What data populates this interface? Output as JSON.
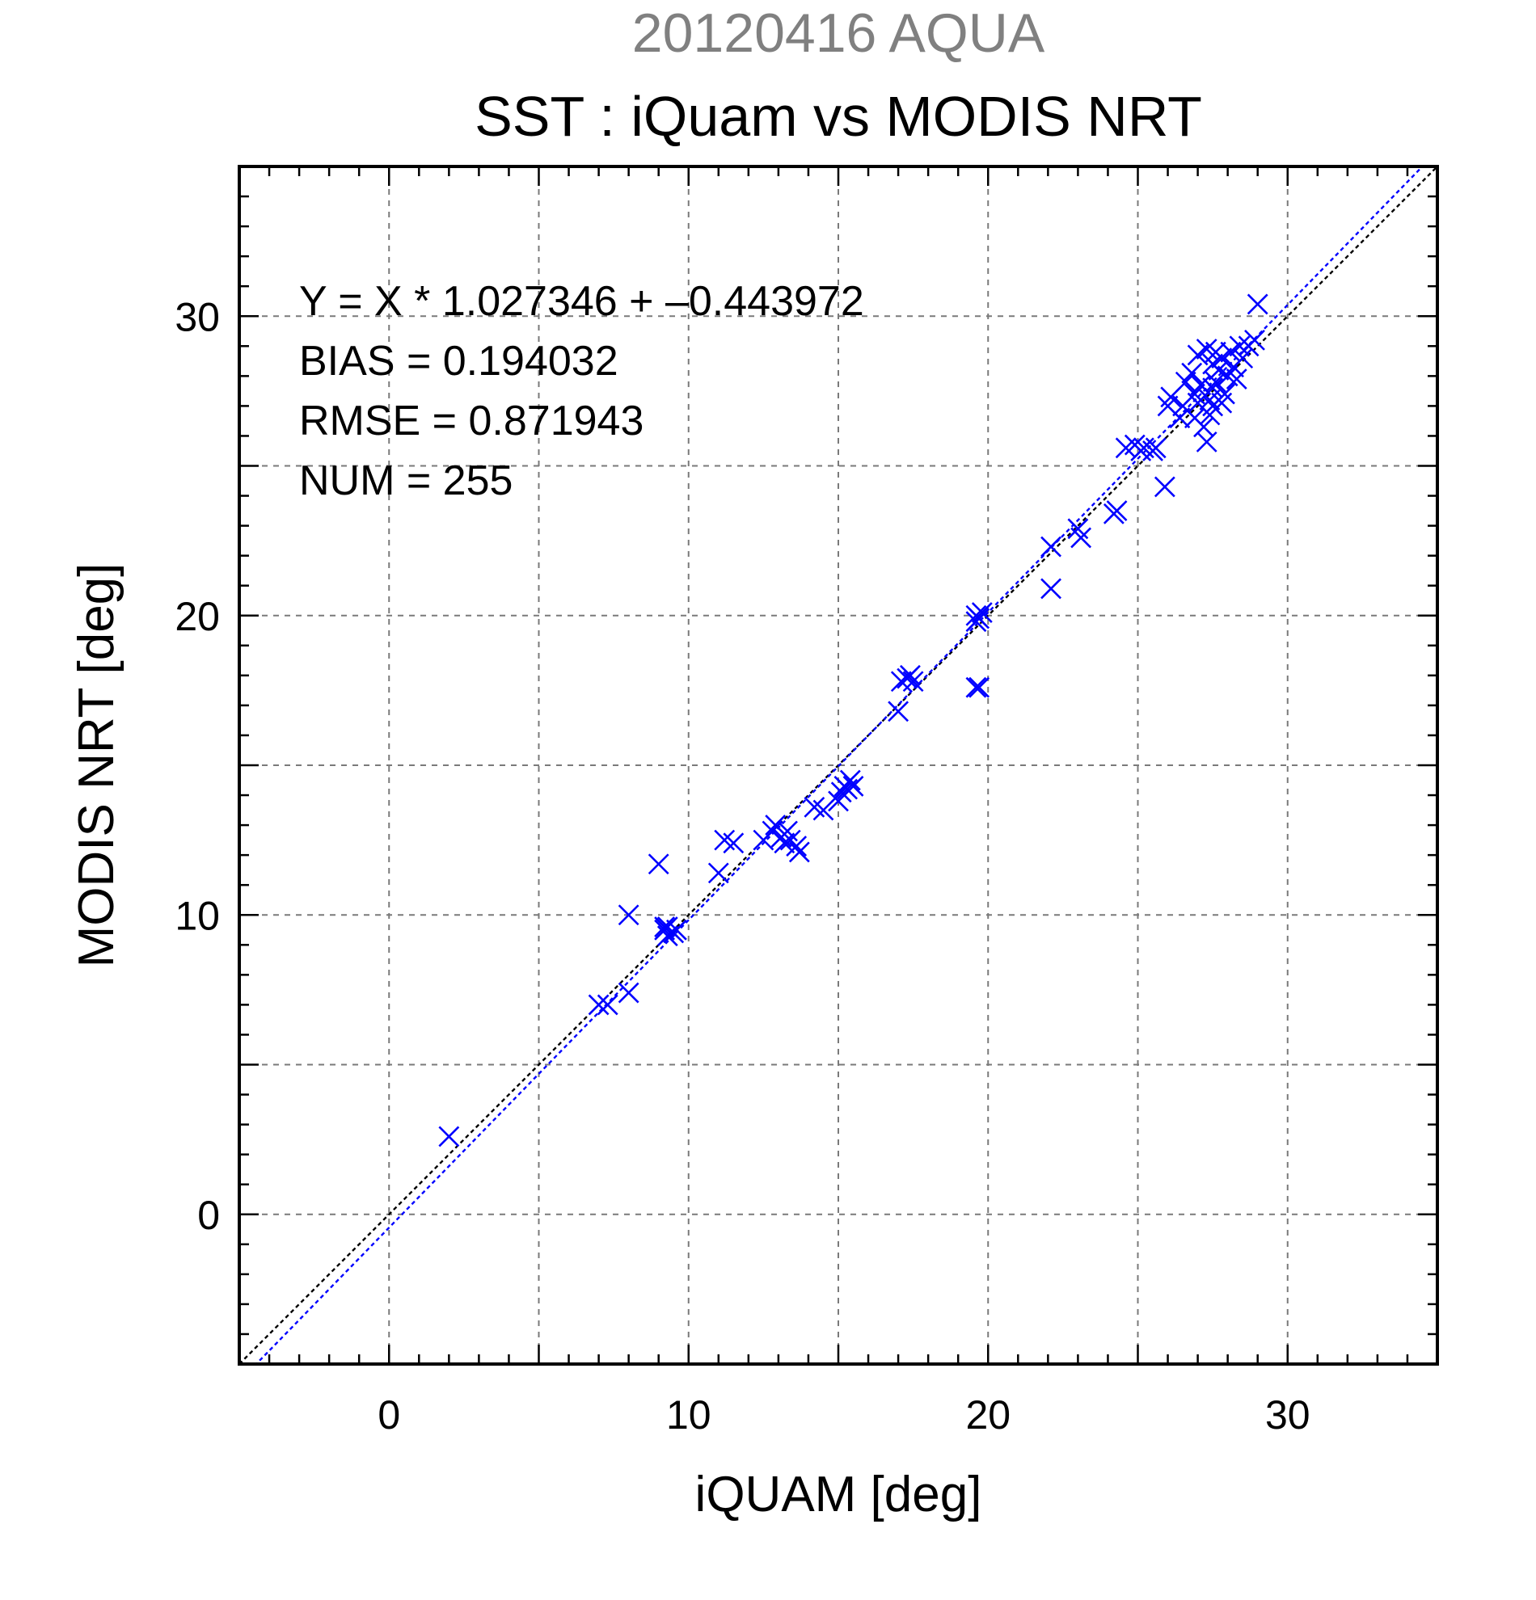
{
  "chart_data": {
    "type": "scatter",
    "title_date": "20120416 AQUA",
    "title": "SST : iQuam vs MODIS NRT",
    "xlabel": "iQUAM [deg]",
    "ylabel": "MODIS NRT [deg]",
    "xlim": [
      -5,
      35
    ],
    "ylim": [
      -5,
      35
    ],
    "x_ticks": [
      0,
      10,
      20,
      30
    ],
    "y_ticks": [
      0,
      10,
      20,
      30
    ],
    "grid": true,
    "colors": {
      "points": "#0000ff",
      "regression": "#0000ff",
      "identity": "#000000",
      "grid": "#7a7a7a",
      "title_date": "#808080"
    },
    "stats": {
      "equation": "Y = X * 1.027346 + –0.443972",
      "bias": "BIAS = 0.194032",
      "rmse": "RMSE = 0.871943",
      "num": "NUM = 255"
    },
    "regression": {
      "slope": 1.027346,
      "intercept": -0.443972
    },
    "points": [
      [
        2.0,
        2.6
      ],
      [
        7.0,
        7.0
      ],
      [
        7.3,
        7.0
      ],
      [
        8.0,
        7.4
      ],
      [
        8.0,
        10.0
      ],
      [
        9.0,
        11.7
      ],
      [
        9.2,
        9.5
      ],
      [
        9.3,
        9.6
      ],
      [
        9.3,
        9.3
      ],
      [
        9.5,
        9.4
      ],
      [
        9.6,
        9.5
      ],
      [
        9.2,
        9.6
      ],
      [
        11.0,
        11.4
      ],
      [
        11.2,
        12.5
      ],
      [
        11.5,
        12.4
      ],
      [
        12.5,
        12.5
      ],
      [
        12.8,
        12.8
      ],
      [
        12.9,
        13.0
      ],
      [
        13.1,
        12.6
      ],
      [
        13.3,
        12.8
      ],
      [
        13.4,
        12.5
      ],
      [
        13.6,
        12.3
      ],
      [
        13.7,
        12.1
      ],
      [
        13.2,
        12.4
      ],
      [
        14.2,
        13.6
      ],
      [
        14.5,
        13.5
      ],
      [
        15.0,
        13.8
      ],
      [
        15.1,
        14.1
      ],
      [
        15.2,
        14.3
      ],
      [
        15.4,
        14.5
      ],
      [
        15.3,
        14.2
      ],
      [
        15.5,
        14.3
      ],
      [
        17.0,
        16.8
      ],
      [
        17.1,
        17.8
      ],
      [
        17.3,
        17.9
      ],
      [
        17.5,
        17.8
      ],
      [
        17.4,
        18.0
      ],
      [
        19.6,
        20.0
      ],
      [
        19.7,
        19.9
      ],
      [
        19.8,
        20.1
      ],
      [
        19.6,
        19.8
      ],
      [
        19.7,
        17.6
      ],
      [
        19.6,
        17.6
      ],
      [
        22.1,
        22.3
      ],
      [
        22.1,
        20.9
      ],
      [
        23.0,
        22.9
      ],
      [
        23.1,
        22.6
      ],
      [
        24.2,
        23.4
      ],
      [
        24.3,
        23.5
      ],
      [
        24.6,
        25.6
      ],
      [
        24.9,
        25.7
      ],
      [
        25.1,
        25.5
      ],
      [
        25.2,
        25.6
      ],
      [
        25.5,
        25.5
      ],
      [
        25.6,
        25.6
      ],
      [
        25.9,
        24.3
      ],
      [
        26.0,
        27.0
      ],
      [
        26.1,
        27.3
      ],
      [
        26.4,
        26.6
      ],
      [
        26.5,
        27.0
      ],
      [
        26.6,
        27.8
      ],
      [
        26.8,
        28.1
      ],
      [
        26.9,
        27.4
      ],
      [
        27.0,
        28.7
      ],
      [
        27.1,
        27.7
      ],
      [
        27.2,
        26.3
      ],
      [
        27.3,
        28.9
      ],
      [
        27.3,
        25.8
      ],
      [
        27.4,
        27.2
      ],
      [
        27.5,
        28.4
      ],
      [
        27.5,
        27.0
      ],
      [
        27.6,
        27.8
      ],
      [
        27.7,
        28.2
      ],
      [
        27.8,
        28.6
      ],
      [
        27.9,
        27.4
      ],
      [
        28.0,
        28.0
      ],
      [
        28.1,
        28.8
      ],
      [
        28.2,
        28.3
      ],
      [
        28.3,
        27.9
      ],
      [
        28.5,
        28.6
      ],
      [
        28.7,
        29.0
      ],
      [
        28.9,
        29.2
      ],
      [
        29.0,
        30.4
      ],
      [
        27.6,
        28.8
      ],
      [
        27.4,
        26.7
      ],
      [
        27.0,
        27.1
      ],
      [
        27.8,
        27.1
      ],
      [
        26.9,
        26.6
      ],
      [
        28.4,
        29.0
      ],
      [
        27.5,
        27.6
      ]
    ]
  }
}
